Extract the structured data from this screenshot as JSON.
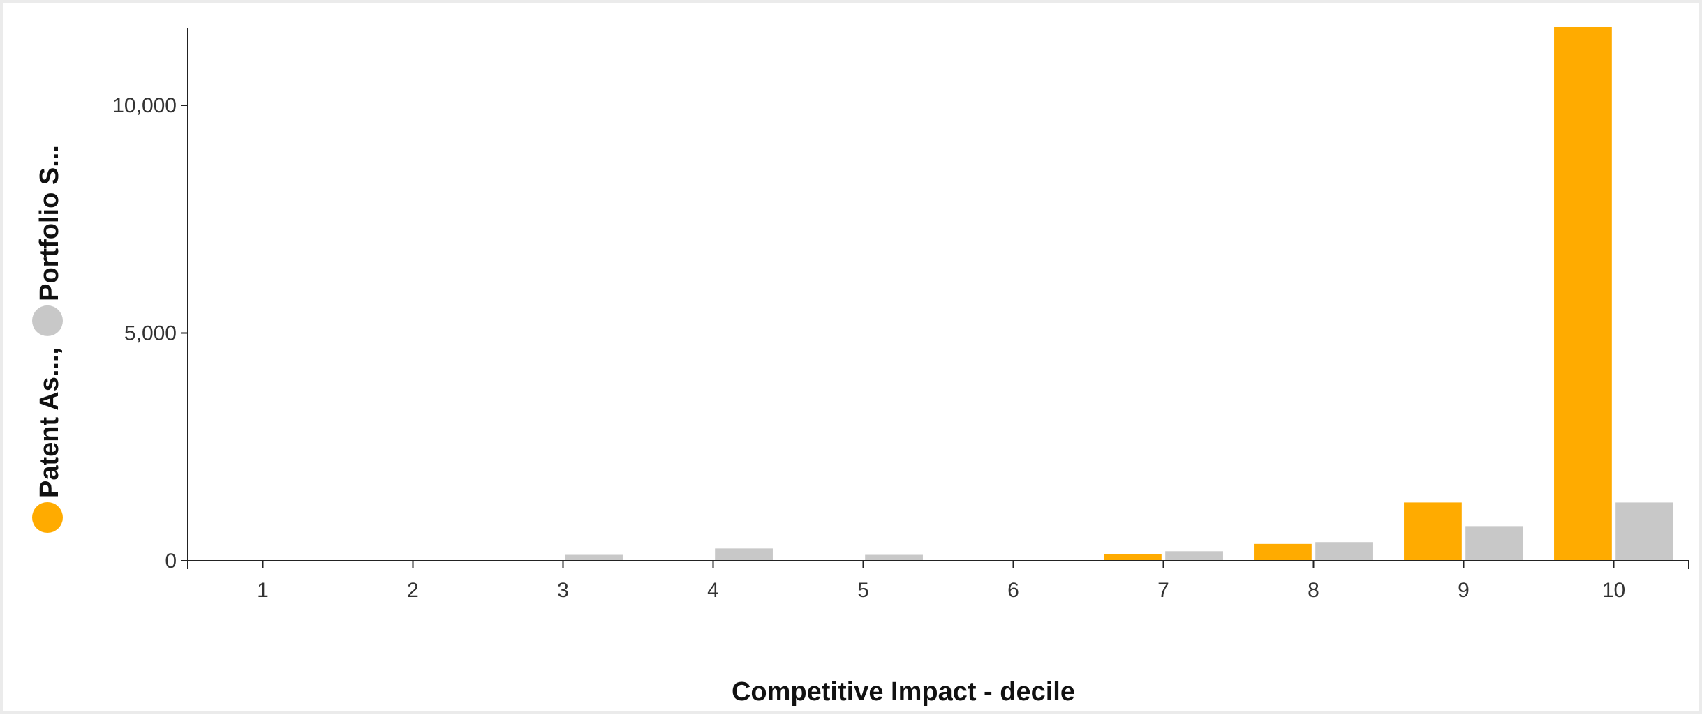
{
  "chart_data": {
    "type": "bar",
    "title": "",
    "xlabel": "Competitive Impact - decile",
    "ylabel": "",
    "categories": [
      "1",
      "2",
      "3",
      "4",
      "5",
      "6",
      "7",
      "8",
      "9",
      "10"
    ],
    "series": [
      {
        "name": "Patent As...",
        "color": "#ffab00",
        "values": [
          0,
          0,
          0,
          0,
          0,
          0,
          140,
          370,
          1280,
          11730
        ]
      },
      {
        "name": "Portfolio S...",
        "color": "#c8c8c8",
        "values": [
          0,
          0,
          130,
          270,
          130,
          0,
          210,
          410,
          760,
          1280
        ]
      }
    ],
    "yticks": [
      0,
      5000,
      10000
    ],
    "ytick_labels": [
      "0",
      "5,000",
      "10,000"
    ],
    "ylim": [
      0,
      11700
    ],
    "grid": false,
    "legend": {
      "placement": "left-vertical",
      "separator": ","
    }
  }
}
